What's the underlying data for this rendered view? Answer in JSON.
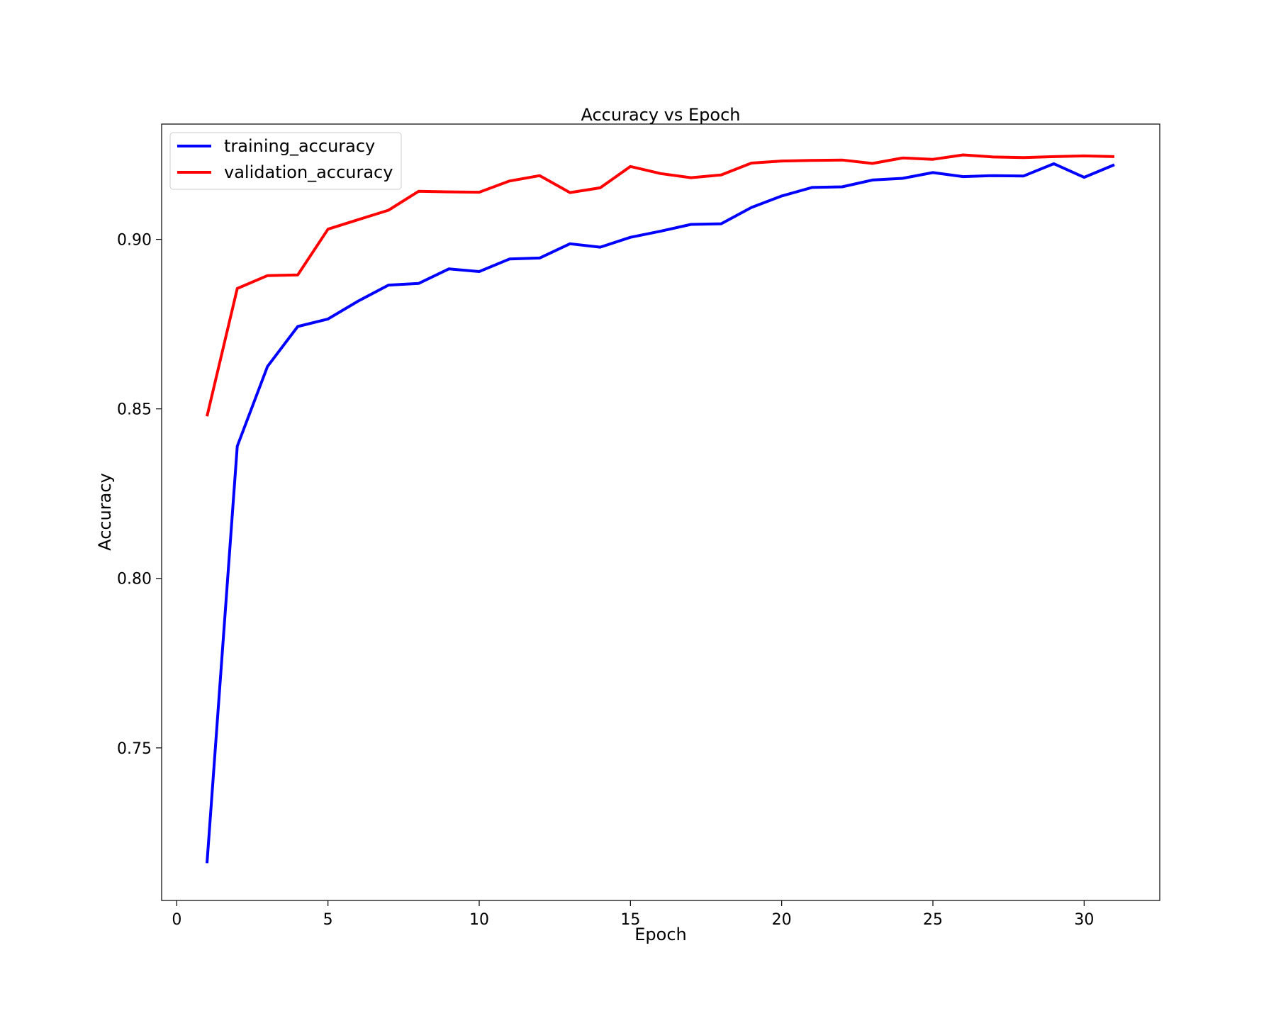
{
  "chart_data": {
    "type": "line",
    "title": "Accuracy vs Epoch",
    "xlabel": "Epoch",
    "ylabel": "Accuracy",
    "xlim": [
      -0.5,
      32.5
    ],
    "ylim": [
      0.705,
      0.934
    ],
    "xticks": [
      0,
      5,
      10,
      15,
      20,
      25,
      30
    ],
    "xtick_labels": [
      "0",
      "5",
      "10",
      "15",
      "20",
      "25",
      "30"
    ],
    "yticks": [
      0.75,
      0.8,
      0.85,
      0.9
    ],
    "ytick_labels": [
      "0.75",
      "0.80",
      "0.85",
      "0.90"
    ],
    "grid": false,
    "legend_position": "top-left",
    "x": [
      1,
      2,
      3,
      4,
      5,
      6,
      7,
      8,
      9,
      10,
      11,
      12,
      13,
      14,
      15,
      16,
      17,
      18,
      19,
      20,
      21,
      22,
      23,
      24,
      25,
      26,
      27,
      28,
      29,
      30,
      31
    ],
    "series": [
      {
        "name": "training_accuracy",
        "color": "#0000ff",
        "values": [
          0.716,
          0.839,
          0.8625,
          0.8743,
          0.8765,
          0.8818,
          0.8865,
          0.887,
          0.8913,
          0.8905,
          0.8942,
          0.8945,
          0.8987,
          0.8977,
          0.9006,
          0.9024,
          0.9044,
          0.9046,
          0.9094,
          0.9128,
          0.9153,
          0.9155,
          0.9175,
          0.918,
          0.9197,
          0.9185,
          0.9188,
          0.9187,
          0.9223,
          0.9183,
          0.922
        ]
      },
      {
        "name": "validation_accuracy",
        "color": "#ff0000",
        "values": [
          0.8478,
          0.8855,
          0.8893,
          0.8895,
          0.903,
          0.9058,
          0.9086,
          0.9142,
          0.914,
          0.9139,
          0.9172,
          0.9188,
          0.9138,
          0.9152,
          0.9215,
          0.9194,
          0.9182,
          0.919,
          0.9225,
          0.9231,
          0.9233,
          0.9234,
          0.9224,
          0.924,
          0.9236,
          0.9249,
          0.9243,
          0.9241,
          0.9244,
          0.9246,
          0.9244
        ]
      }
    ]
  }
}
